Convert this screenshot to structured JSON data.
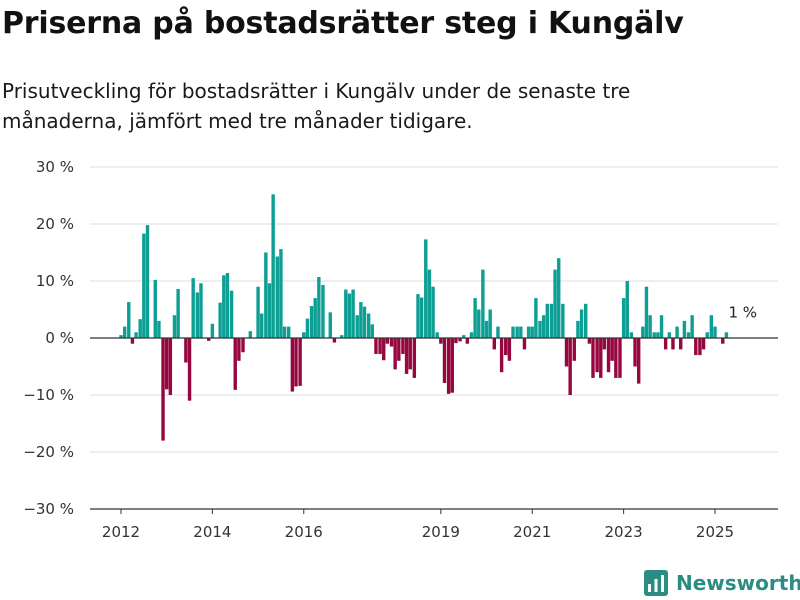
{
  "title": "Priserna på bostadsrätter steg i Kungälv",
  "subtitle": "Prisutveckling för bostadsrätter i Kungälv under de senaste tre månaderna, jämfört med tre månader tidigare.",
  "brand": {
    "name": "Newsworthy",
    "icon": "bar-chart-logo-icon"
  },
  "colors": {
    "positive": "#0d9e94",
    "negative": "#96063f",
    "grid": "#dddddd",
    "zero": "#333333"
  },
  "chart_data": {
    "type": "bar",
    "ylim": [
      -30,
      30
    ],
    "y_ticks": [
      {
        "value": 30,
        "label": "30 %"
      },
      {
        "value": 20,
        "label": "20 %"
      },
      {
        "value": 10,
        "label": "10 %"
      },
      {
        "value": 0,
        "label": "0 %"
      },
      {
        "value": -10,
        "label": "−10 %"
      },
      {
        "value": -20,
        "label": "−20 %"
      },
      {
        "value": -30,
        "label": "−30 %"
      }
    ],
    "x_ticks": [
      {
        "value": 2012.0,
        "label": "2012"
      },
      {
        "value": 2014.0,
        "label": "2014"
      },
      {
        "value": 2016.0,
        "label": "2016"
      },
      {
        "value": 2019.0,
        "label": "2019"
      },
      {
        "value": 2021.0,
        "label": "2021"
      },
      {
        "value": 2023.0,
        "label": "2023"
      },
      {
        "value": 2025.0,
        "label": "2025"
      }
    ],
    "grid": true,
    "annotation": {
      "x": 2025.58,
      "value": 1,
      "label": "1 %"
    },
    "points": [
      {
        "x": 2012.0,
        "y": 0.5
      },
      {
        "x": 2012.08,
        "y": 2
      },
      {
        "x": 2012.17,
        "y": 6.3
      },
      {
        "x": 2012.25,
        "y": -1
      },
      {
        "x": 2012.33,
        "y": 1
      },
      {
        "x": 2012.42,
        "y": 3.3
      },
      {
        "x": 2012.5,
        "y": 18.3
      },
      {
        "x": 2012.58,
        "y": 19.8
      },
      {
        "x": 2012.75,
        "y": 10.2
      },
      {
        "x": 2012.83,
        "y": 3
      },
      {
        "x": 2012.92,
        "y": -18
      },
      {
        "x": 2013.0,
        "y": -9
      },
      {
        "x": 2013.08,
        "y": -10
      },
      {
        "x": 2013.17,
        "y": 4
      },
      {
        "x": 2013.25,
        "y": 8.6
      },
      {
        "x": 2013.42,
        "y": -4.3
      },
      {
        "x": 2013.5,
        "y": -11
      },
      {
        "x": 2013.58,
        "y": 10.5
      },
      {
        "x": 2013.67,
        "y": 8
      },
      {
        "x": 2013.75,
        "y": 9.6
      },
      {
        "x": 2013.92,
        "y": -0.5
      },
      {
        "x": 2014.0,
        "y": 2.5
      },
      {
        "x": 2014.17,
        "y": 6.2
      },
      {
        "x": 2014.25,
        "y": 11
      },
      {
        "x": 2014.33,
        "y": 11.4
      },
      {
        "x": 2014.42,
        "y": 8.3
      },
      {
        "x": 2014.5,
        "y": -9.1
      },
      {
        "x": 2014.58,
        "y": -4
      },
      {
        "x": 2014.67,
        "y": -2.5
      },
      {
        "x": 2014.83,
        "y": 1.2
      },
      {
        "x": 2015.0,
        "y": 9
      },
      {
        "x": 2015.08,
        "y": 4.3
      },
      {
        "x": 2015.17,
        "y": 15
      },
      {
        "x": 2015.25,
        "y": 9.6
      },
      {
        "x": 2015.33,
        "y": 25.2
      },
      {
        "x": 2015.42,
        "y": 14.3
      },
      {
        "x": 2015.5,
        "y": 15.6
      },
      {
        "x": 2015.58,
        "y": 2
      },
      {
        "x": 2015.67,
        "y": 2
      },
      {
        "x": 2015.75,
        "y": -9.4
      },
      {
        "x": 2015.83,
        "y": -8.5
      },
      {
        "x": 2015.92,
        "y": -8.4
      },
      {
        "x": 2016.0,
        "y": 1
      },
      {
        "x": 2016.08,
        "y": 3.4
      },
      {
        "x": 2016.17,
        "y": 5.6
      },
      {
        "x": 2016.25,
        "y": 7
      },
      {
        "x": 2016.33,
        "y": 10.7
      },
      {
        "x": 2016.42,
        "y": 9.3
      },
      {
        "x": 2016.58,
        "y": 4.5
      },
      {
        "x": 2016.67,
        "y": -0.8
      },
      {
        "x": 2016.83,
        "y": 0.5
      },
      {
        "x": 2016.92,
        "y": 8.5
      },
      {
        "x": 2017.0,
        "y": 7.8
      },
      {
        "x": 2017.08,
        "y": 8.5
      },
      {
        "x": 2017.17,
        "y": 4
      },
      {
        "x": 2017.25,
        "y": 6.3
      },
      {
        "x": 2017.33,
        "y": 5.5
      },
      {
        "x": 2017.42,
        "y": 4.3
      },
      {
        "x": 2017.5,
        "y": 2.4
      },
      {
        "x": 2017.58,
        "y": -2.8
      },
      {
        "x": 2017.67,
        "y": -2.8
      },
      {
        "x": 2017.75,
        "y": -3.9
      },
      {
        "x": 2017.83,
        "y": -1
      },
      {
        "x": 2017.92,
        "y": -1.5
      },
      {
        "x": 2018.0,
        "y": -5.5
      },
      {
        "x": 2018.08,
        "y": -4
      },
      {
        "x": 2018.17,
        "y": -2.8
      },
      {
        "x": 2018.25,
        "y": -6.3
      },
      {
        "x": 2018.33,
        "y": -5.5
      },
      {
        "x": 2018.42,
        "y": -7
      },
      {
        "x": 2018.5,
        "y": 7.7
      },
      {
        "x": 2018.58,
        "y": 7.1
      },
      {
        "x": 2018.67,
        "y": 17.3
      },
      {
        "x": 2018.75,
        "y": 12
      },
      {
        "x": 2018.83,
        "y": 9
      },
      {
        "x": 2018.92,
        "y": 1
      },
      {
        "x": 2019.0,
        "y": -1
      },
      {
        "x": 2019.08,
        "y": -7.9
      },
      {
        "x": 2019.17,
        "y": -9.8
      },
      {
        "x": 2019.25,
        "y": -9.6
      },
      {
        "x": 2019.33,
        "y": -0.9
      },
      {
        "x": 2019.42,
        "y": -0.6
      },
      {
        "x": 2019.5,
        "y": 0.5
      },
      {
        "x": 2019.58,
        "y": -1
      },
      {
        "x": 2019.67,
        "y": 1
      },
      {
        "x": 2019.75,
        "y": 7
      },
      {
        "x": 2019.83,
        "y": 5
      },
      {
        "x": 2019.92,
        "y": 12
      },
      {
        "x": 2020.0,
        "y": 3
      },
      {
        "x": 2020.08,
        "y": 5
      },
      {
        "x": 2020.17,
        "y": -2
      },
      {
        "x": 2020.25,
        "y": 2
      },
      {
        "x": 2020.33,
        "y": -6
      },
      {
        "x": 2020.42,
        "y": -3
      },
      {
        "x": 2020.5,
        "y": -4
      },
      {
        "x": 2020.58,
        "y": 2
      },
      {
        "x": 2020.67,
        "y": 2
      },
      {
        "x": 2020.75,
        "y": 2
      },
      {
        "x": 2020.83,
        "y": -2
      },
      {
        "x": 2020.92,
        "y": 2
      },
      {
        "x": 2021.0,
        "y": 2
      },
      {
        "x": 2021.08,
        "y": 7
      },
      {
        "x": 2021.17,
        "y": 3
      },
      {
        "x": 2021.25,
        "y": 4
      },
      {
        "x": 2021.33,
        "y": 6
      },
      {
        "x": 2021.42,
        "y": 6
      },
      {
        "x": 2021.5,
        "y": 12
      },
      {
        "x": 2021.58,
        "y": 14
      },
      {
        "x": 2021.67,
        "y": 6
      },
      {
        "x": 2021.75,
        "y": -5
      },
      {
        "x": 2021.83,
        "y": -10
      },
      {
        "x": 2021.92,
        "y": -4
      },
      {
        "x": 2022.0,
        "y": 3
      },
      {
        "x": 2022.08,
        "y": 5
      },
      {
        "x": 2022.17,
        "y": 6
      },
      {
        "x": 2022.25,
        "y": -1
      },
      {
        "x": 2022.33,
        "y": -7
      },
      {
        "x": 2022.42,
        "y": -6
      },
      {
        "x": 2022.5,
        "y": -7
      },
      {
        "x": 2022.58,
        "y": -2
      },
      {
        "x": 2022.67,
        "y": -6
      },
      {
        "x": 2022.75,
        "y": -4
      },
      {
        "x": 2022.83,
        "y": -7
      },
      {
        "x": 2022.92,
        "y": -7
      },
      {
        "x": 2023.0,
        "y": 7
      },
      {
        "x": 2023.08,
        "y": 10
      },
      {
        "x": 2023.17,
        "y": 1
      },
      {
        "x": 2023.25,
        "y": -5
      },
      {
        "x": 2023.33,
        "y": -8
      },
      {
        "x": 2023.42,
        "y": 2
      },
      {
        "x": 2023.5,
        "y": 9
      },
      {
        "x": 2023.58,
        "y": 4
      },
      {
        "x": 2023.67,
        "y": 1
      },
      {
        "x": 2023.75,
        "y": 1
      },
      {
        "x": 2023.83,
        "y": 4
      },
      {
        "x": 2023.92,
        "y": -2
      },
      {
        "x": 2024.0,
        "y": 1
      },
      {
        "x": 2024.08,
        "y": -2
      },
      {
        "x": 2024.17,
        "y": 2
      },
      {
        "x": 2024.25,
        "y": -2
      },
      {
        "x": 2024.33,
        "y": 3
      },
      {
        "x": 2024.42,
        "y": 1
      },
      {
        "x": 2024.5,
        "y": 4
      },
      {
        "x": 2024.58,
        "y": -3
      },
      {
        "x": 2024.67,
        "y": -3
      },
      {
        "x": 2024.75,
        "y": -2
      },
      {
        "x": 2024.83,
        "y": 1
      },
      {
        "x": 2024.92,
        "y": 4
      },
      {
        "x": 2025.0,
        "y": 2
      },
      {
        "x": 2025.17,
        "y": -1
      },
      {
        "x": 2025.25,
        "y": 1
      }
    ]
  }
}
